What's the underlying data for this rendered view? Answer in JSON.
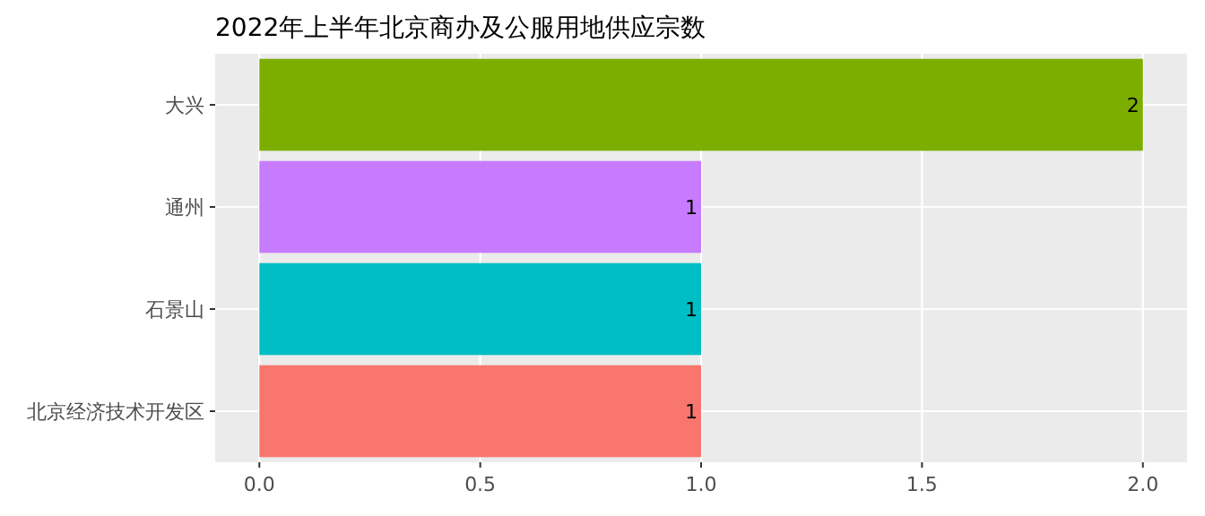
{
  "chart_data": {
    "type": "bar",
    "title": "2022年上半年北京商办及公服用地供应宗数",
    "orientation": "horizontal",
    "categories": [
      "大兴",
      "通州",
      "石景山",
      "北京经济技术开发区"
    ],
    "values": [
      2,
      1,
      1,
      1
    ],
    "colors": [
      "#7cae00",
      "#c77cff",
      "#00bfc4",
      "#f8766d"
    ],
    "xlim": [
      -0.1,
      2.1
    ],
    "xticks": [
      {
        "value": 0,
        "label": "0.0"
      },
      {
        "value": 0.5,
        "label": "0.5"
      },
      {
        "value": 1,
        "label": "1.0"
      },
      {
        "value": 1.5,
        "label": "1.5"
      },
      {
        "value": 2,
        "label": "2.0"
      }
    ],
    "grid": true,
    "data_labels": true
  }
}
